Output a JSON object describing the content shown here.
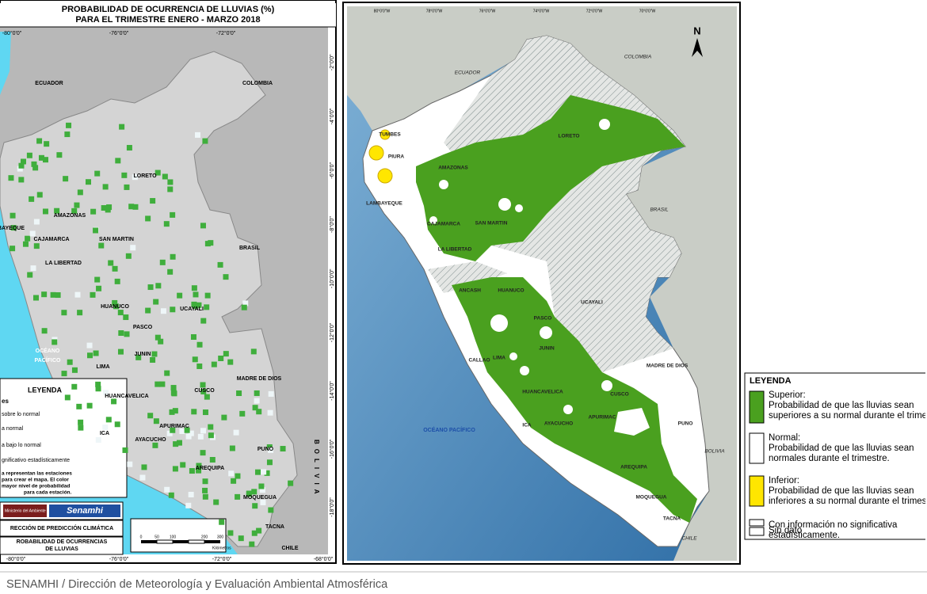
{
  "left_map": {
    "title": "PROBABILIDAD DE OCURRENCIA DE LLUVIAS (%)",
    "subtitle": "PARA EL TRIMESTRE ENERO - MARZO 2018",
    "coords_top": [
      "-80°0'0\"",
      "-76°0'0\"",
      "-72°0'0\""
    ],
    "coords_bottom": [
      "-80°0'0\"",
      "-76°0'0\"",
      "-72°0'0\"",
      "-68°0'0\""
    ],
    "coords_right": [
      "-2°0'0\"",
      "-4°0'0\"",
      "-6°0'0\"",
      "-8°0'0\"",
      "-10°0'0\"",
      "-12°0'0\"",
      "-14°0'0\"",
      "-16°0'0\"",
      "-18°0'0\""
    ],
    "labels": [
      "ECUADOR",
      "COLOMBIA",
      "LORETO",
      "AMAZONAS",
      "BAYEQUE",
      "CAJAMARCA",
      "SAN MARTIN",
      "LA LIBERTAD",
      "BRASIL",
      "HUANUCO",
      "UCAYALI",
      "PASCO",
      "OCÉANO",
      "PACÍFICO",
      "JUNIN",
      "LIMA",
      "MADRE DE DIOS",
      "CUSCO",
      "HUANCAVELICA",
      "APURIMAC",
      "ICA",
      "AYACUCHO",
      "PUNO",
      "AREQUIPA",
      "MOQUEGUA",
      "TACNA",
      "CHILE"
    ],
    "bolivia": "BOLIVIA",
    "legend": {
      "title": "LEYENDA",
      "heading": "es",
      "items": [
        "sobre lo normal",
        "a normal",
        "a bajo lo normal",
        "gnificativo estadísticamente"
      ],
      "note": [
        "a representan las estaciones",
        "para crear el mapa. El color",
        "mayor nivel de probabilidad",
        "para cada estación."
      ]
    },
    "logos": [
      "Ministerio del Ambiente",
      "Senamhi"
    ],
    "boxes": [
      "RECCIÓN DE PREDICCIÓN CLIMÁTICA",
      "ROBABILIDAD DE OCURRENCIAS",
      "DE LLUVIAS"
    ],
    "scale": {
      "ticks": [
        "0",
        "50",
        "100",
        "200",
        "300"
      ],
      "unit": "Kilómetros"
    }
  },
  "right_map": {
    "coords_top": [
      "80°0'0\"W",
      "78°0'0\"W",
      "76°0'0\"W",
      "74°0'0\"W",
      "72°0'0\"W",
      "70°0'0\"W"
    ],
    "north": "N",
    "labels": [
      "ECUADOR",
      "COLOMBIA",
      "BRASIL",
      "BOLIVIA",
      "CHILE",
      "TUMBES",
      "PIURA",
      "LAMBAYEQUE",
      "AMAZONAS",
      "LORETO",
      "CAJAMARCA",
      "SAN MARTIN",
      "LA LIBERTAD",
      "ANCASH",
      "HUANUCO",
      "UCAYALI",
      "PASCO",
      "JUNIN",
      "CALLAO",
      "LIMA",
      "MADRE DE DIOS",
      "HUANCAVELICA",
      "CUSCO",
      "ICA",
      "AYACUCHO",
      "APURIMAC",
      "PUNO",
      "AREQUIPA",
      "MOQUEGUA",
      "TACNA"
    ],
    "ocean": "OCÉANO PACÍFICO"
  },
  "legend": {
    "title": "LEYENDA",
    "items": [
      {
        "label": "Superior:",
        "lines": [
          "Probabilidad de que las lluvias sean",
          "superiores a su normal durante el trimestre."
        ]
      },
      {
        "label": "Normal:",
        "lines": [
          "Probabilidad de que las lluvias sean",
          "normales durante el trimestre."
        ]
      },
      {
        "label": "Inferior:",
        "lines": [
          "Probabilidad de que las lluvias sean",
          "inferiores a su normal durante el trimestre."
        ]
      },
      {
        "label": "Con información no significativa",
        "lines": [
          "estadísticamente."
        ]
      },
      {
        "label": "Sin dato",
        "lines": []
      }
    ]
  },
  "footer": "SENAMHI / Dirección de Meteorología y Evaluación Ambiental Atmosférica"
}
